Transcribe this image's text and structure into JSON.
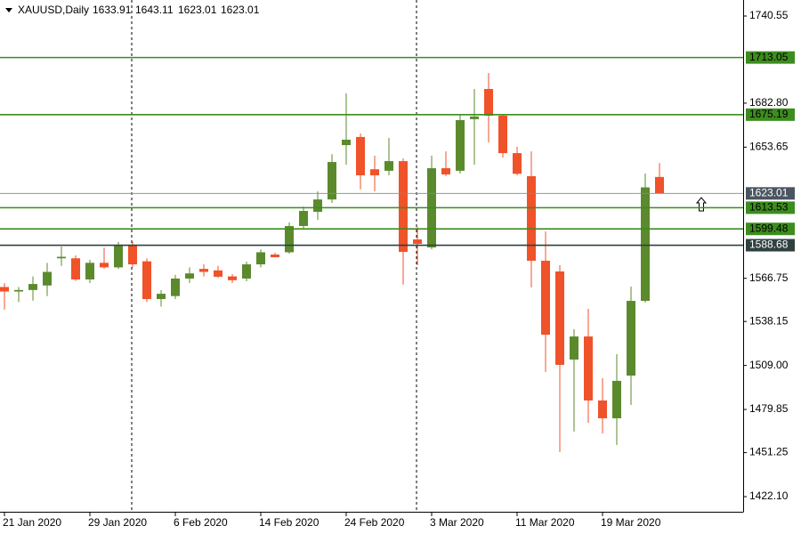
{
  "chart_data": {
    "type": "candlestick",
    "symbol": "XAUUSD,Daily",
    "categories": [
      "21 Jan 2020",
      null,
      null,
      null,
      null,
      null,
      "29 Jan 2020",
      null,
      null,
      null,
      null,
      null,
      "6 Feb 2020",
      null,
      null,
      null,
      null,
      null,
      "14 Feb 2020",
      null,
      null,
      null,
      null,
      null,
      "24 Feb 2020",
      null,
      null,
      null,
      null,
      null,
      "3 Mar 2020",
      null,
      null,
      null,
      null,
      null,
      "11 Mar 2020",
      null,
      null,
      null,
      null,
      null,
      "19 Mar 2020",
      null,
      null,
      null,
      null
    ],
    "open": [
      1561,
      1558,
      1559,
      1562,
      1580,
      1580,
      1566,
      1577,
      1574,
      1589,
      1578,
      1553,
      1555,
      1566.6,
      1573,
      1572,
      1568,
      1566.6,
      1576,
      1582.5,
      1584,
      1601.4,
      1610.8,
      1619,
      1655,
      1660.4,
      1639,
      1638,
      1644.4,
      1592.5,
      1587.2,
      1639.7,
      1638,
      1672.2,
      1692.2,
      1674.5,
      1649.7,
      1634.4,
      1578.4,
      1571.3,
      1512.9,
      1528.2,
      1485.8,
      1474,
      1502.3,
      1551.8,
      1633.91
    ],
    "high": [
      1563.6,
      1561,
      1568,
      1577,
      1587.8,
      1582,
      1579,
      1587,
      1590.8,
      1590.8,
      1580,
      1559,
      1569,
      1574,
      1576,
      1575,
      1569.5,
      1577.8,
      1586,
      1583.7,
      1603.7,
      1614.3,
      1624.4,
      1649,
      1689.3,
      1662.7,
      1648,
      1659.8,
      1646.2,
      1600.8,
      1648,
      1650.9,
      1675.7,
      1692.2,
      1702.8,
      1675.7,
      1653.9,
      1650.9,
      1597.8,
      1575.4,
      1533,
      1546.5,
      1500.5,
      1516.5,
      1561.3,
      1636.2,
      1643.11
    ],
    "low": [
      1546,
      1551,
      1552,
      1555,
      1575,
      1565,
      1563.6,
      1573,
      1573,
      1574,
      1551,
      1548,
      1553,
      1563.6,
      1568,
      1567,
      1563.6,
      1564.8,
      1574,
      1580.7,
      1583,
      1599.6,
      1605.5,
      1616.7,
      1642,
      1625.6,
      1624.4,
      1635,
      1562.5,
      1575.4,
      1586,
      1634.4,
      1636.2,
      1642,
      1656.8,
      1646.8,
      1635,
      1560.7,
      1504.7,
      1451.6,
      1465.2,
      1471,
      1464,
      1456.3,
      1482.8,
      1550.7,
      1623.01
    ],
    "close": [
      1558,
      1559,
      1563,
      1571,
      1581,
      1566,
      1577,
      1574,
      1588.5,
      1576,
      1553,
      1556.5,
      1566.6,
      1570,
      1571,
      1567.8,
      1565.5,
      1576,
      1584,
      1580.7,
      1601.4,
      1611.4,
      1619,
      1643.8,
      1658.6,
      1635,
      1635,
      1644.4,
      1584.3,
      1589.6,
      1639.7,
      1635.6,
      1671.6,
      1674,
      1674.5,
      1649.7,
      1636,
      1578.4,
      1529.4,
      1509.4,
      1528.2,
      1485.8,
      1474,
      1498.8,
      1551.8,
      1627,
      1623.01
    ],
    "up_color": "#5b8a2d",
    "down_color": "#f0522a",
    "levels": [
      1713.05,
      1675.19,
      1613.53,
      1599.48,
      1588.68
    ],
    "level_colors": [
      "#3d8c1f",
      "#3d8c1f",
      "#3d8c1f",
      "#3d8c1f",
      "#2f4040"
    ],
    "ylim": [
      1412.07,
      1751.16
    ],
    "yticks": [
      1740.55,
      {
        "value": 1682.8,
        "label": "1682.80"
      },
      1653.65,
      1566.75,
      1538.15,
      {
        "value": 1509,
        "label": "1509.00"
      },
      1479.85,
      1451.25,
      {
        "value": 1422.1,
        "label": "1422.10"
      }
    ],
    "grid": false
  }
}
